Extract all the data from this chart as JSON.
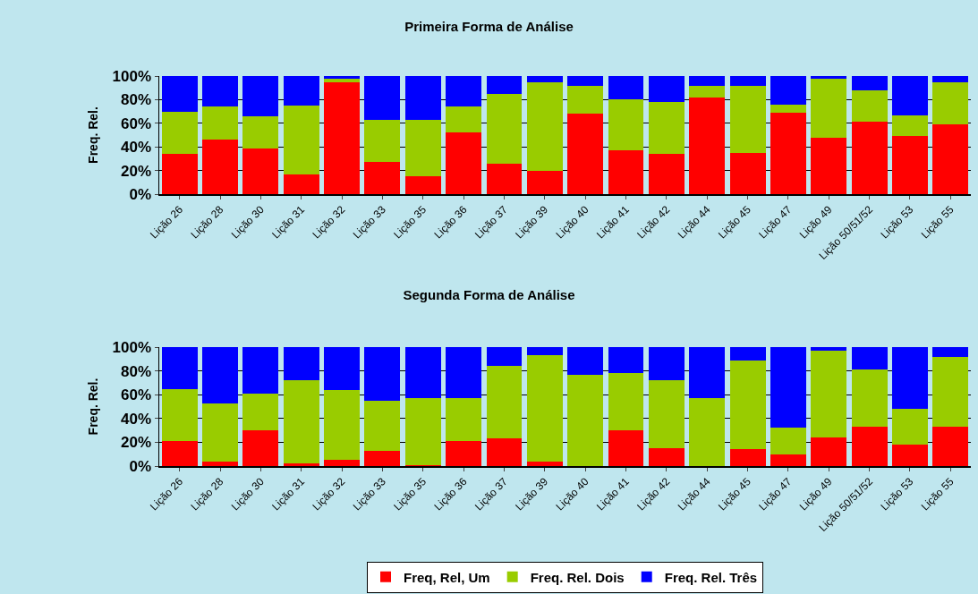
{
  "chart_data": [
    {
      "type": "bar",
      "stacked": true,
      "title": "Primeira Forma de Análise",
      "ylabel": "Freq. Rel.",
      "categories": [
        "Lição 26",
        "Lição 28",
        "Lição 30",
        "Lição 31",
        "Lição 32",
        "Lição 33",
        "Lição 35",
        "Lição 36",
        "Lição 37",
        "Lição 39",
        "Lição 40",
        "Lição 41",
        "Lição 42",
        "Lição 44",
        "Lição 45",
        "Lição 47",
        "Lição 49",
        "Lição 50/51/52",
        "Lição 53",
        "Lição 55"
      ],
      "series": [
        {
          "color": "#ff0000",
          "values": [
            34,
            46,
            39,
            17,
            94.5,
            27,
            15,
            52,
            26,
            20,
            68,
            37,
            34,
            82,
            35,
            69,
            48,
            61,
            49,
            59
          ]
        },
        {
          "color": "#99cc00",
          "values": [
            36,
            28,
            27,
            58,
            3.5,
            36,
            48,
            22,
            59,
            75,
            24,
            43,
            44,
            10,
            57,
            7,
            50,
            27,
            18,
            36
          ]
        },
        {
          "color": "#0000ff",
          "values": [
            30,
            26,
            34,
            25,
            2,
            37,
            37,
            26,
            15,
            5,
            8,
            20,
            22,
            8,
            8,
            24,
            2,
            12,
            33,
            5
          ]
        }
      ],
      "ylim": [
        0,
        100
      ],
      "yticks": [
        {
          "value": 0,
          "label": "0%"
        },
        {
          "value": 20,
          "label": "20%"
        },
        {
          "value": 40,
          "label": "40%"
        },
        {
          "value": 60,
          "label": "60%"
        },
        {
          "value": 80,
          "label": "80%"
        },
        {
          "value": 100,
          "label": "100%"
        }
      ],
      "grid": "y",
      "legend": false
    },
    {
      "type": "bar",
      "stacked": true,
      "title": "Segunda Forma de Análise",
      "ylabel": "Freq. Rel.",
      "categories": [
        "Lição 26",
        "Lição 28",
        "Lição 30",
        "Lição 31",
        "Lição 32",
        "Lição 33",
        "Lição 35",
        "Lição 36",
        "Lição 37",
        "Lição 39",
        "Lição 40",
        "Lição 41",
        "Lição 42",
        "Lição 44",
        "Lição 45",
        "Lição 47",
        "Lição 49",
        "Lição 50/51/52",
        "Lição 53",
        "Lição 55"
      ],
      "series": [
        {
          "name": "Freq, Rel, Um",
          "color": "#ff0000",
          "values": [
            21,
            3.5,
            30,
            2.5,
            5,
            13,
            0.5,
            21,
            23,
            3.5,
            0,
            30,
            15,
            0,
            14,
            10,
            24,
            33,
            18,
            33
          ]
        },
        {
          "name": "Freq. Rel. Dois",
          "color": "#99cc00",
          "values": [
            44,
            49.5,
            31,
            69.5,
            59,
            42,
            56.5,
            36,
            61,
            89.5,
            77,
            48,
            57,
            57,
            75,
            22,
            73,
            48,
            30,
            59
          ]
        },
        {
          "name": "Freq. Rel. Três",
          "color": "#0000ff",
          "values": [
            35,
            47,
            39,
            28,
            36,
            45,
            43,
            43,
            16,
            7,
            23,
            22,
            28,
            43,
            11,
            68,
            3,
            19,
            52,
            8
          ]
        }
      ],
      "ylim": [
        0,
        100
      ],
      "yticks": [
        {
          "value": 0,
          "label": "0%"
        },
        {
          "value": 20,
          "label": "20%"
        },
        {
          "value": 40,
          "label": "40%"
        },
        {
          "value": 60,
          "label": "60%"
        },
        {
          "value": 80,
          "label": "80%"
        },
        {
          "value": 100,
          "label": "100%"
        }
      ],
      "grid": "y",
      "legend": "bottom"
    }
  ]
}
